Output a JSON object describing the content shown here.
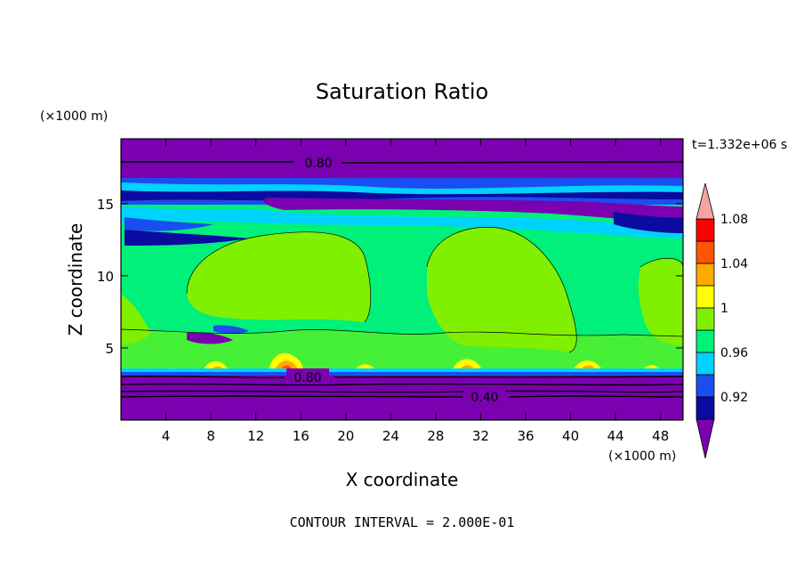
{
  "chart_data": {
    "type": "heatmap",
    "title": "Saturation Ratio",
    "xlabel": "X coordinate",
    "ylabel": "Z coordinate",
    "x_unit_label": "(×1000 m)",
    "y_unit_label": "(×1000 m)",
    "time_label": "t=1.332e+06 s",
    "footer": "CONTOUR INTERVAL = 2.000E-01",
    "xlim": [
      0,
      50
    ],
    "ylim": [
      0,
      19.5
    ],
    "x_ticks": [
      4,
      8,
      12,
      16,
      20,
      24,
      28,
      32,
      36,
      40,
      44,
      48
    ],
    "y_ticks": [
      5,
      10,
      15
    ],
    "colorbar": {
      "levels": [
        0.92,
        0.94,
        0.96,
        0.98,
        1.0,
        1.02,
        1.04,
        1.06,
        1.08,
        1.1
      ],
      "labels": [
        "0.92",
        "0.96",
        "1",
        "1.04",
        "1.08"
      ],
      "colors": [
        "#7a00b0",
        "#0b0ba0",
        "#1a4ef0",
        "#00d2ff",
        "#00f07a",
        "#80f000",
        "#ffff00",
        "#ffaa00",
        "#ff5500",
        "#ff0000",
        "#f5a3a3"
      ]
    },
    "contour_labels": [
      {
        "text": "0.80",
        "x": 14.4,
        "z": 18.2
      },
      {
        "text": "0.80",
        "x": 14.4,
        "z": 3.0
      },
      {
        "text": "0.40",
        "x": 32.2,
        "z": 1.8
      }
    ],
    "layers": [
      {
        "z_range": [
          0,
          3.2
        ],
        "value": "< 0.92"
      },
      {
        "z_range": [
          3.2,
          4.0
        ],
        "value": "0.98 – 1.00"
      },
      {
        "z_range": [
          4.0,
          13.0
        ],
        "value": "1.00 – 1.02 with 0.98 – 1.00 background"
      },
      {
        "z_range": [
          13.0,
          17.0
        ],
        "value": "0.92 – 0.98 banded"
      },
      {
        "z_range": [
          17.0,
          19.5
        ],
        "value": "< 0.92"
      }
    ]
  }
}
